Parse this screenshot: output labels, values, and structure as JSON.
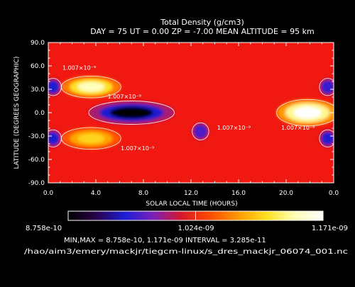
{
  "chart_data": {
    "type": "heatmap",
    "title": "Total Density (g/cm3)",
    "subtitle": "DAY =   75   UT =   0.00   ZP =  -7.00   MEAN ALTITUDE =   95  km",
    "xlabel": "SOLAR LOCAL TIME (HOURS)",
    "ylabel": "LATITUDE (DEGREES GEOGRAPHIC)",
    "xlim": [
      0,
      24
    ],
    "ylim": [
      -90,
      90
    ],
    "x_ticks": [
      "0.0",
      "4.0",
      "8.0",
      "12.0",
      "16.0",
      "20.0",
      "0.0"
    ],
    "y_ticks": [
      "90.0",
      "60.0",
      "30.0",
      "0.0",
      "-30.0",
      "-60.0",
      "-90.0"
    ],
    "min": 8.758e-10,
    "max": 1.171e-09,
    "interval": 3.285e-11,
    "contour_label": "1.007×10⁻⁹",
    "contour_value": 1.007e-09,
    "colorbar": {
      "min_label": "8.758e-10",
      "mid_label": "1.024e-09",
      "max_label": "1.171e-09",
      "colors": [
        "#000000",
        "#2a004a",
        "#1c1fd6",
        "#7a1fb8",
        "#d6182a",
        "#ff4a00",
        "#ff9a00",
        "#ffe020",
        "#ffffb8",
        "#ffffff"
      ]
    },
    "features": [
      {
        "type": "max",
        "x": 3.6,
        "y": 33,
        "value": 1.14e-09
      },
      {
        "type": "max",
        "x": 3.6,
        "y": -33,
        "value": 1.1e-09
      },
      {
        "type": "max",
        "x": 21.8,
        "y": 0,
        "value": 1.171e-09
      },
      {
        "type": "min",
        "x": 7.0,
        "y": 0,
        "value": 8.758e-10
      },
      {
        "type": "min",
        "x": 12.8,
        "y": -24,
        "value": 9.6e-10
      },
      {
        "type": "min",
        "x": 0.4,
        "y": 33,
        "value": 9.4e-10
      },
      {
        "type": "min",
        "x": 0.4,
        "y": -33,
        "value": 9.4e-10
      },
      {
        "type": "min",
        "x": 23.5,
        "y": 33,
        "value": 9.5e-10
      },
      {
        "type": "min",
        "x": 23.5,
        "y": -33,
        "value": 9.4e-10
      }
    ],
    "contour_labels": [
      {
        "text": "1.007×10⁻⁹",
        "x": 2.6,
        "y": 55
      },
      {
        "text": "1.007×10⁻⁹",
        "x": 6.4,
        "y": 18
      },
      {
        "text": "1.007×10⁻⁹",
        "x": 15.6,
        "y": -22
      },
      {
        "text": "1.007×10⁻⁹",
        "x": 21.0,
        "y": -22
      },
      {
        "text": "1.007×10⁻⁹",
        "x": 7.5,
        "y": -48
      }
    ]
  },
  "stats_line": "MIN,MAX =  8.758e-10, 1.171e-09 INTERVAL =  3.285e-11",
  "file_path": "/hao/aim3/emery/mackjr/tiegcm-linux/s_dres_mackjr_06074_001.nc"
}
